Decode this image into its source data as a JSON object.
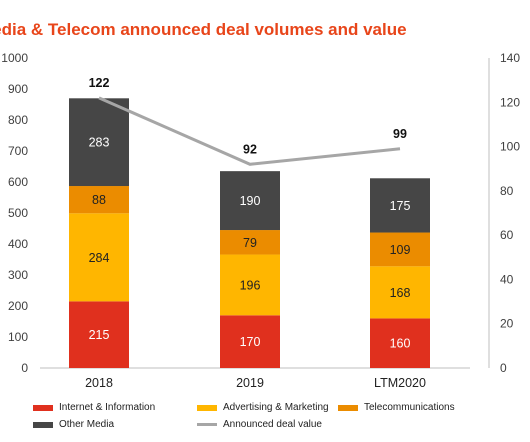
{
  "title": "Media & Telecom announced deal volumes and value",
  "colors": {
    "internet": "#e0301e",
    "advertising": "#ffb600",
    "telecom": "#eb8c00",
    "other": "#464646",
    "line": "#a6a6a6"
  },
  "chart_data": {
    "type": "bar",
    "stacked": true,
    "categories": [
      "2018",
      "2019",
      "LTM2020"
    ],
    "series": [
      {
        "name": "Internet & Information",
        "values": [
          215,
          170,
          160
        ],
        "color": "#e0301e",
        "label_color": "light"
      },
      {
        "name": "Advertising & Marketing",
        "values": [
          284,
          196,
          168
        ],
        "color": "#ffb600",
        "label_color": "dark"
      },
      {
        "name": "Telecommunications",
        "values": [
          88,
          79,
          109
        ],
        "color": "#eb8c00",
        "label_color": "dark"
      },
      {
        "name": "Other Media",
        "values": [
          283,
          190,
          175
        ],
        "color": "#464646",
        "label_color": "light"
      }
    ],
    "line_series": {
      "name": "Announced deal value",
      "values": [
        122,
        92,
        99
      ],
      "color": "#a6a6a6",
      "axis": "right"
    },
    "ylim": [
      0,
      1000
    ],
    "y_ticks": [
      "0",
      "100",
      "200",
      "300",
      "400",
      "500",
      "600",
      "700",
      "800",
      "900",
      "1000"
    ],
    "y2lim": [
      0,
      140
    ],
    "y2_ticks": [
      "0",
      "20",
      "40",
      "60",
      "80",
      "100",
      "120",
      "140"
    ],
    "xlabel": "",
    "ylabel": "",
    "y2label": "",
    "grid": false,
    "legend_position": "bottom"
  },
  "legend": [
    {
      "label": "Internet & Information",
      "color": "#e0301e",
      "kind": "bar"
    },
    {
      "label": "Advertising & Marketing",
      "color": "#ffb600",
      "kind": "bar"
    },
    {
      "label": "Telecommunications",
      "color": "#eb8c00",
      "kind": "bar"
    },
    {
      "label": "Other Media",
      "color": "#464646",
      "kind": "bar"
    },
    {
      "label": "Announced deal value",
      "color": "#a6a6a6",
      "kind": "line"
    }
  ]
}
